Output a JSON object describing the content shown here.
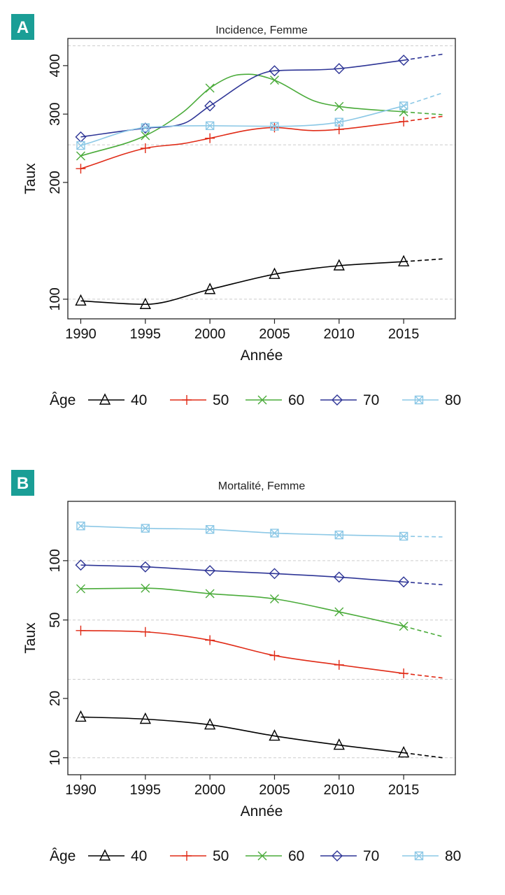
{
  "colors": {
    "badge": "#1a9e96",
    "grid": "#cccccc",
    "frame": "#222222",
    "series": {
      "40": "#000000",
      "50": "#e02b17",
      "60": "#4aab3a",
      "70": "#2e3596",
      "80": "#8cc8e6"
    },
    "markers": {
      "40": "triangle",
      "50": "plus",
      "60": "cross",
      "70": "diamond",
      "80": "boxed-cross"
    }
  },
  "legend": {
    "title": "Âge",
    "entries": [
      "40",
      "50",
      "60",
      "70",
      "80"
    ]
  },
  "chart_data": [
    {
      "panel": "A",
      "type": "line",
      "title": "Incidence, Femme",
      "xlabel": "Année",
      "ylabel": "Taux",
      "yscale": "log",
      "xlim": [
        1989,
        2019
      ],
      "ylim": [
        89,
        470
      ],
      "xticks": [
        "1990",
        "1995",
        "2000",
        "2005",
        "2010",
        "2015"
      ],
      "yticks": [
        "100",
        "200",
        "300",
        "400"
      ],
      "gridlines": [
        100,
        250,
        450
      ],
      "markers_x": [
        1990,
        1995,
        2000,
        2005,
        2010,
        2015
      ],
      "series": [
        {
          "name": "40",
          "observed": {
            "x": [
              1990,
              1995,
              2000,
              2005,
              2008,
              2010,
              2015
            ],
            "y": [
              99,
              97,
              106,
              116,
              120,
              122,
              125
            ]
          },
          "projected": {
            "x": [
              2015,
              2018
            ],
            "y": [
              125,
              127
            ]
          }
        },
        {
          "name": "50",
          "observed": {
            "x": [
              1990,
              1995,
              1998,
              2000,
              2003,
              2005,
              2008,
              2010,
              2015
            ],
            "y": [
              217,
              245,
              252,
              260,
              273,
              277,
              272,
              274,
              287
            ]
          },
          "projected": {
            "x": [
              2015,
              2018
            ],
            "y": [
              287,
              296
            ]
          }
        },
        {
          "name": "60",
          "observed": {
            "x": [
              1990,
              1995,
              1998,
              2000,
              2002,
              2003,
              2005,
              2008,
              2010,
              2015
            ],
            "y": [
              234,
              264,
              305,
              350,
              378,
              380,
              367,
              325,
              314,
              304
            ]
          },
          "projected": {
            "x": [
              2015,
              2018
            ],
            "y": [
              304,
              299
            ]
          }
        },
        {
          "name": "70",
          "observed": {
            "x": [
              1990,
              1995,
              1998,
              2000,
              2005,
              2008,
              2010,
              2015
            ],
            "y": [
              262,
              276,
              284,
              315,
              388,
              390,
              393,
              413
            ]
          },
          "projected": {
            "x": [
              2015,
              2018
            ],
            "y": [
              413,
              428
            ]
          }
        },
        {
          "name": "80",
          "observed": {
            "x": [
              1990,
              1995,
              2000,
              2005,
              2008,
              2010,
              2015
            ],
            "y": [
              249,
              277,
              280,
              279,
              281,
              286,
              315
            ]
          },
          "projected": {
            "x": [
              2015,
              2018
            ],
            "y": [
              315,
              340
            ]
          }
        }
      ]
    },
    {
      "panel": "B",
      "type": "line",
      "title": "Mortalité, Femme",
      "xlabel": "Année",
      "ylabel": "Taux",
      "yscale": "log",
      "xlim": [
        1989,
        2019
      ],
      "ylim": [
        8.2,
        200
      ],
      "xticks": [
        "1990",
        "1995",
        "2000",
        "2005",
        "2010",
        "2015"
      ],
      "yticks": [
        "10",
        "20",
        "50",
        "100"
      ],
      "gridlines": [
        10,
        25,
        50,
        100
      ],
      "markers_x": [
        1990,
        1995,
        2000,
        2005,
        2010,
        2015
      ],
      "series": [
        {
          "name": "40",
          "observed": {
            "x": [
              1990,
              1995,
              2000,
              2005,
              2010,
              2015
            ],
            "y": [
              16.1,
              15.7,
              14.7,
              12.9,
              11.6,
              10.6
            ]
          },
          "projected": {
            "x": [
              2015,
              2018
            ],
            "y": [
              10.6,
              10.0
            ]
          }
        },
        {
          "name": "50",
          "observed": {
            "x": [
              1990,
              1995,
              2000,
              2005,
              2010,
              2015
            ],
            "y": [
              44.2,
              43.5,
              39.5,
              33.0,
              29.6,
              26.8
            ]
          },
          "projected": {
            "x": [
              2015,
              2018
            ],
            "y": [
              26.8,
              25.4
            ]
          }
        },
        {
          "name": "60",
          "observed": {
            "x": [
              1990,
              1995,
              2000,
              2005,
              2010,
              2015
            ],
            "y": [
              72.0,
              72.5,
              68.0,
              64.0,
              55.0,
              46.5
            ]
          },
          "projected": {
            "x": [
              2015,
              2018
            ],
            "y": [
              46.5,
              41.2
            ]
          }
        },
        {
          "name": "70",
          "observed": {
            "x": [
              1990,
              1995,
              2000,
              2005,
              2010,
              2015
            ],
            "y": [
              95.0,
              93.0,
              89.0,
              86.0,
              82.5,
              78.0
            ]
          },
          "projected": {
            "x": [
              2015,
              2018
            ],
            "y": [
              78.0,
              75.5
            ]
          }
        },
        {
          "name": "80",
          "observed": {
            "x": [
              1990,
              1995,
              2000,
              2005,
              2010,
              2015
            ],
            "y": [
              150.0,
              146.0,
              144.0,
              138.0,
              135.0,
              133.0
            ]
          },
          "projected": {
            "x": [
              2015,
              2018
            ],
            "y": [
              133.0,
              132.0
            ]
          }
        }
      ]
    }
  ]
}
